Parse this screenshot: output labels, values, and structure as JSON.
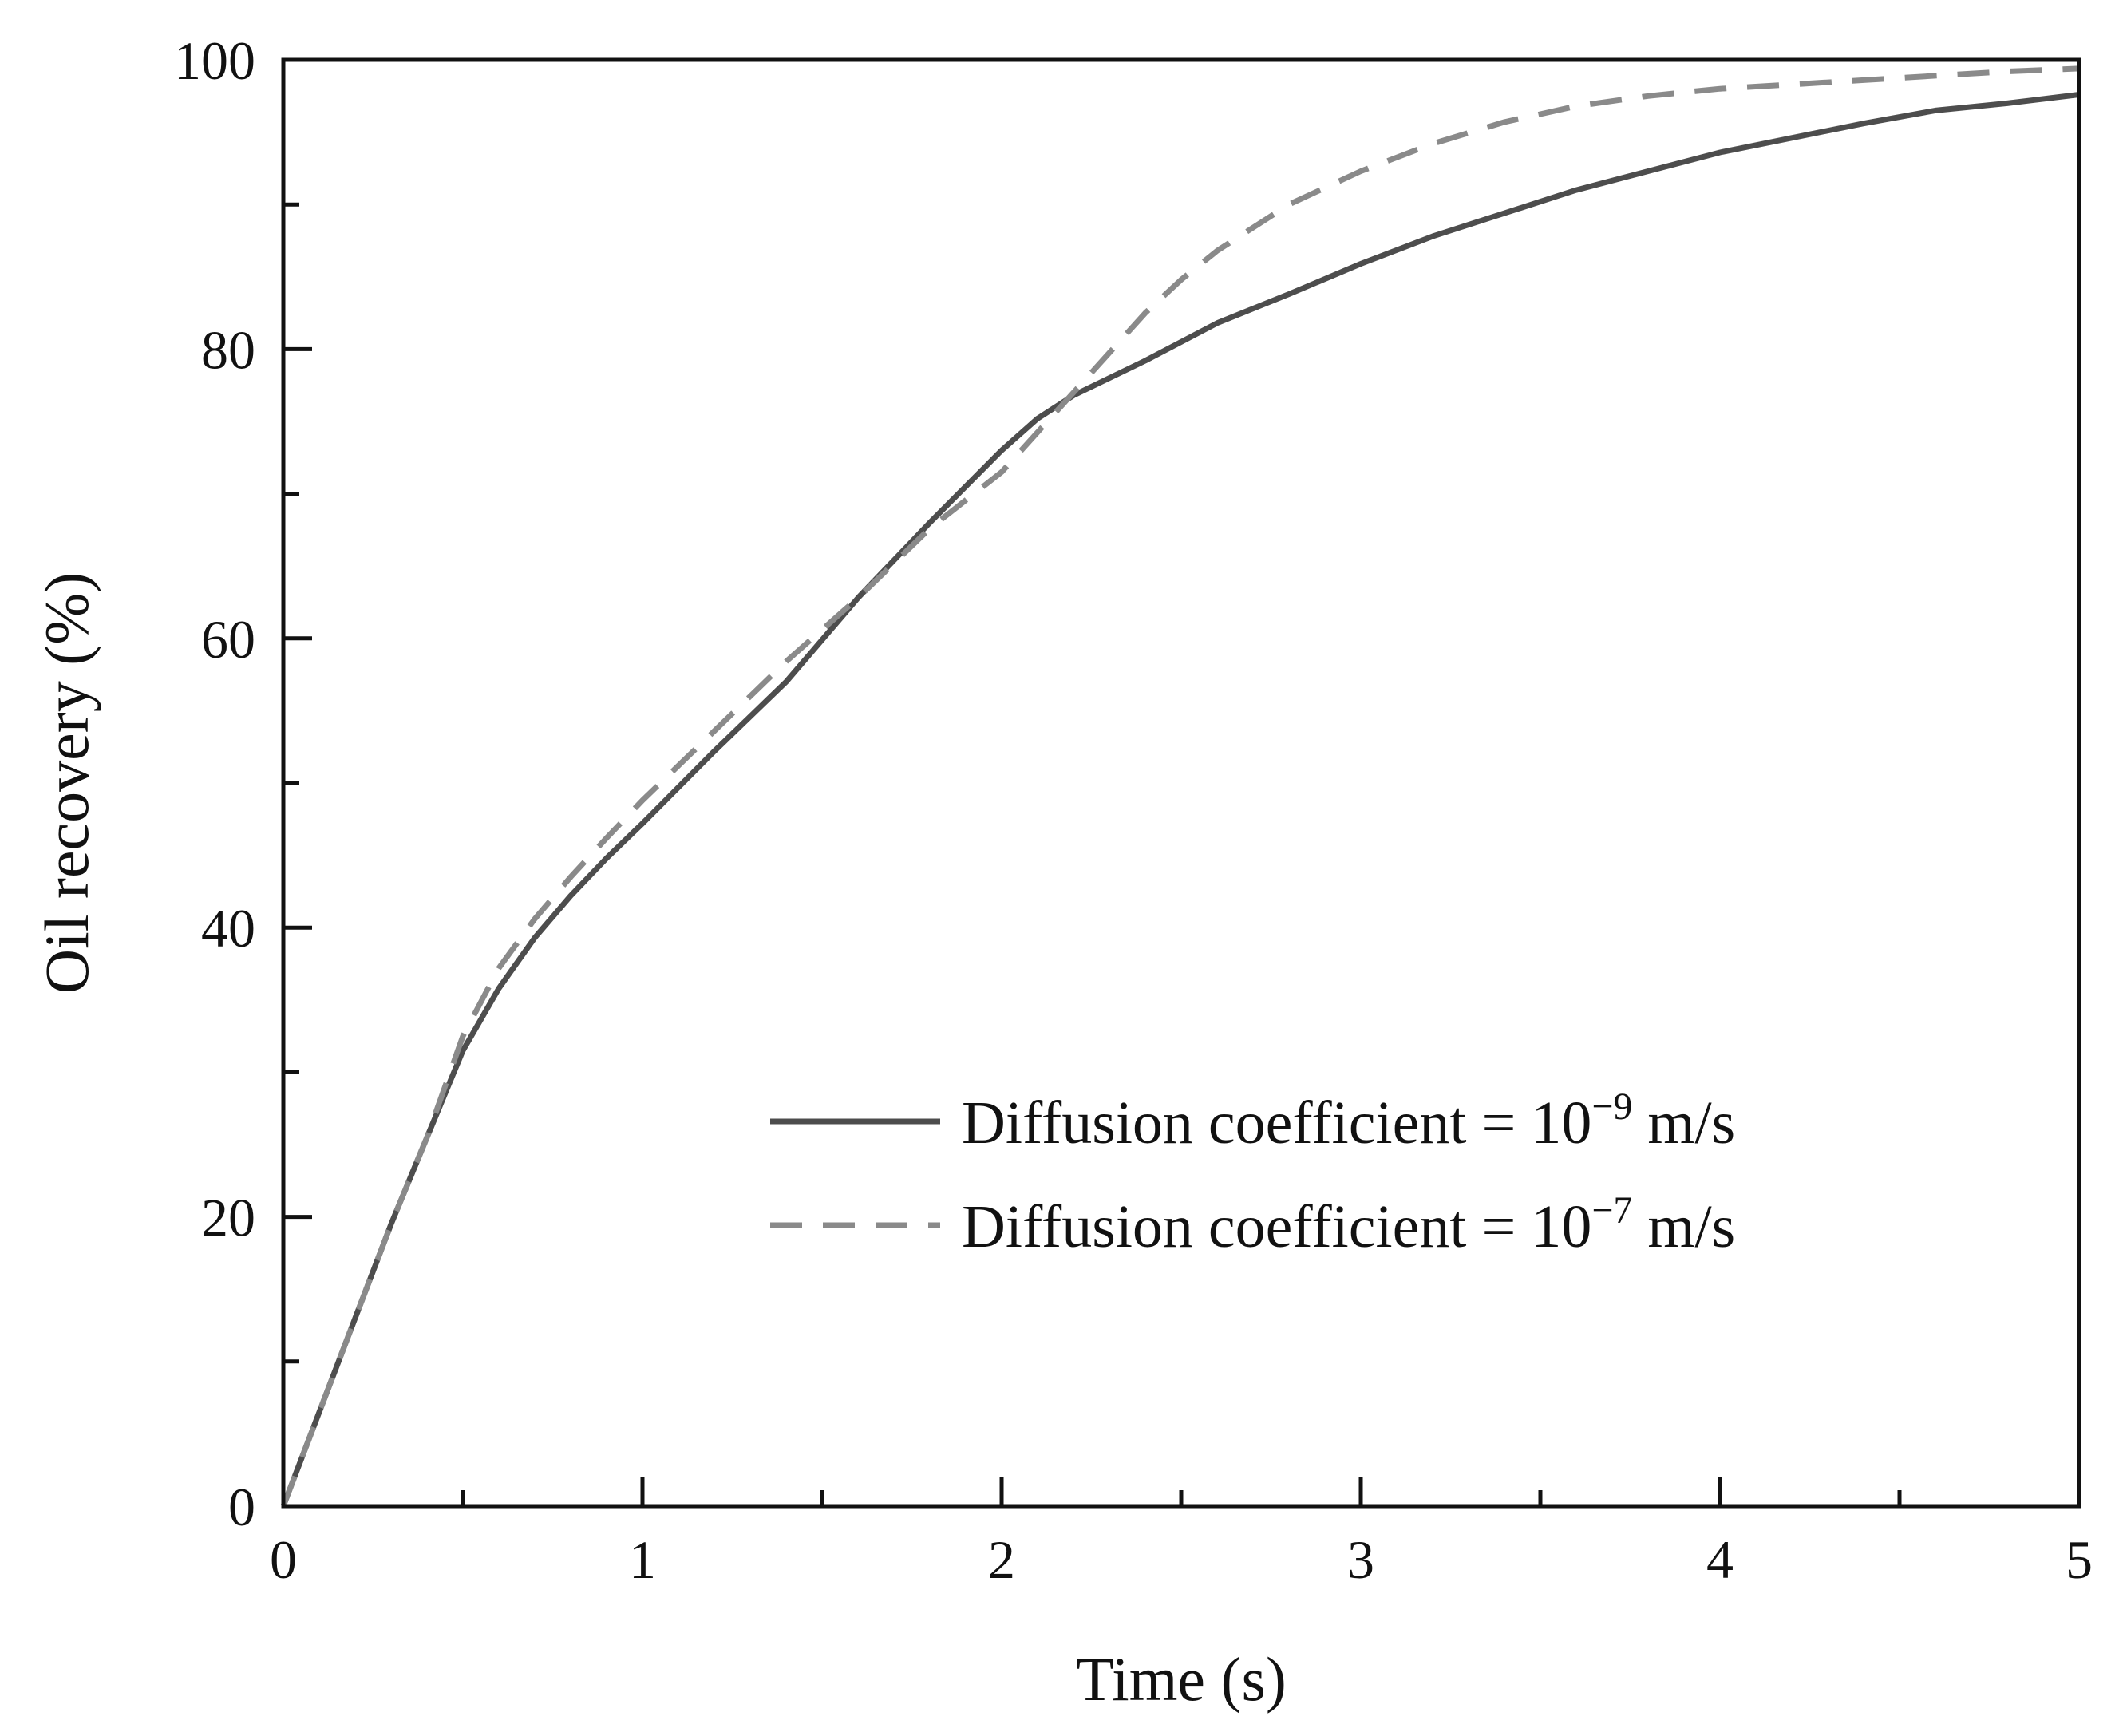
{
  "chart_data": {
    "type": "line",
    "title": "",
    "xlabel": "Time (s)",
    "ylabel": "Oil recovery (%)",
    "xlim": [
      0,
      5
    ],
    "ylim": [
      0,
      100
    ],
    "x_ticks": [
      "0",
      "1",
      "2",
      "3",
      "4",
      "5"
    ],
    "y_ticks": [
      "0",
      "20",
      "40",
      "60",
      "80",
      "100"
    ],
    "grid": false,
    "legend_position": "lower-right",
    "series": [
      {
        "name": "Diffusion coefficient = 10−9 m/s",
        "legend_prefix": "Diffusion coefficient = 10",
        "legend_exponent": "−9",
        "legend_suffix": " m/s",
        "style": "solid",
        "color": "#4d4d4d",
        "x": [
          0,
          0.1,
          0.2,
          0.3,
          0.4,
          0.5,
          0.6,
          0.7,
          0.8,
          0.9,
          1.0,
          1.2,
          1.4,
          1.6,
          1.8,
          2.0,
          2.1,
          2.2,
          2.4,
          2.6,
          2.8,
          3.0,
          3.2,
          3.4,
          3.6,
          3.8,
          4.0,
          4.2,
          4.4,
          4.6,
          4.8,
          5.0
        ],
        "y": [
          0,
          6.5,
          13,
          19.5,
          25.5,
          31.5,
          35.8,
          39.3,
          42.2,
          44.8,
          47.2,
          52.2,
          57.0,
          62.8,
          68.0,
          73.0,
          75.2,
          76.8,
          79.2,
          81.8,
          83.8,
          85.9,
          87.8,
          89.4,
          91.0,
          92.3,
          93.6,
          94.6,
          95.6,
          96.5,
          97.0,
          97.6
        ]
      },
      {
        "name": "Diffusion coefficient = 10−7 m/s",
        "legend_prefix": "Diffusion coefficient = 10",
        "legend_exponent": "−7",
        "legend_suffix": " m/s",
        "style": "dashed",
        "color": "#8a8a8a",
        "x": [
          0,
          0.1,
          0.2,
          0.3,
          0.4,
          0.5,
          0.6,
          0.7,
          0.8,
          0.9,
          1.0,
          1.2,
          1.4,
          1.6,
          1.8,
          2.0,
          2.2,
          2.4,
          2.5,
          2.6,
          2.8,
          3.0,
          3.2,
          3.4,
          3.6,
          3.8,
          4.0,
          4.2,
          4.4,
          4.6,
          4.8,
          5.0
        ],
        "y": [
          0,
          6.5,
          13,
          19.5,
          25.5,
          32.5,
          37.2,
          40.6,
          43.5,
          46.2,
          48.8,
          53.6,
          58.4,
          62.8,
          67.6,
          71.5,
          77.0,
          82.5,
          84.8,
          86.8,
          90.0,
          92.3,
          94.2,
          95.7,
          96.8,
          97.5,
          98.0,
          98.3,
          98.6,
          98.9,
          99.2,
          99.4
        ]
      }
    ]
  }
}
